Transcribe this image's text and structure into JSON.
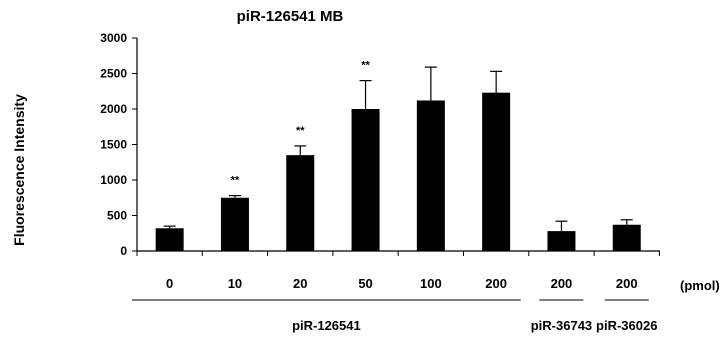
{
  "chart_data": {
    "type": "bar",
    "title": "piR-126541 MB",
    "ylabel": "Fluorescence Intensity",
    "xlabel": "",
    "unit_label": "(pmol)",
    "ylim": [
      0,
      3000
    ],
    "yticks": [
      0,
      500,
      1000,
      1500,
      2000,
      2500,
      3000
    ],
    "categories": [
      "0",
      "10",
      "20",
      "50",
      "100",
      "200",
      "200",
      "200"
    ],
    "values": [
      320,
      750,
      1350,
      2000,
      2120,
      2230,
      280,
      370
    ],
    "errors": [
      30,
      30,
      130,
      400,
      470,
      300,
      140,
      70
    ],
    "annotations": [
      "",
      "**",
      "**",
      "**",
      "",
      "",
      "",
      ""
    ],
    "groups": [
      {
        "label": "piR-126541",
        "start": 0,
        "end": 5
      },
      {
        "label": "piR-36743",
        "start": 6,
        "end": 6
      },
      {
        "label": "piR-36026",
        "start": 7,
        "end": 7
      }
    ],
    "bar_color": "#000000",
    "grid": false,
    "legend": "none"
  }
}
